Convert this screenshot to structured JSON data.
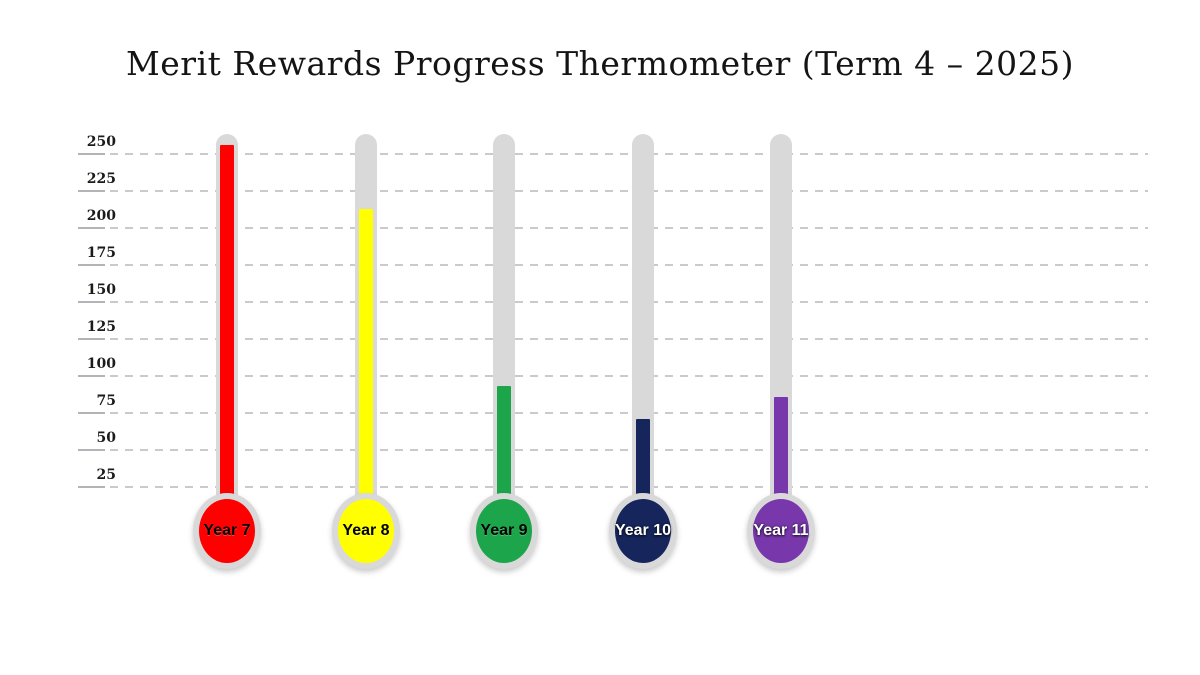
{
  "title": "Merit Rewards Progress Thermometer (Term 4 – 2025)",
  "colors": {
    "background": "#ffffff",
    "title_text": "#141414",
    "tube_gray": "#d9d9d9",
    "gridline_dash": "#c9c9ce",
    "axis_tick": "#b3b3b8",
    "tick_label_text": "#1b1b1b"
  },
  "chart_data": {
    "type": "bar",
    "subtype": "thermometer-gauge",
    "title": "Merit Rewards Progress Thermometer (Term 4 – 2025)",
    "categories": [
      "Year 7",
      "Year 8",
      "Year 9",
      "Year 10",
      "Year 11"
    ],
    "values": [
      255,
      212,
      92,
      70,
      85
    ],
    "series_colors": [
      "#fe0000",
      "#ffff00",
      "#1ca54a",
      "#16265c",
      "#7838ac"
    ],
    "label_text_colors": [
      "#000000",
      "#000000",
      "#000000",
      "#ffffff",
      "#ffffff"
    ],
    "yticks": [
      250,
      225,
      200,
      175,
      150,
      125,
      100,
      75,
      50,
      25
    ],
    "ylim": [
      0,
      263
    ],
    "xlabel": "",
    "ylabel": "",
    "grid": "horizontal-dashed",
    "legend": "none",
    "notes": "Each category drawn as a thermometer: gray tube with colored mercury fill and labeled bulb at base"
  }
}
